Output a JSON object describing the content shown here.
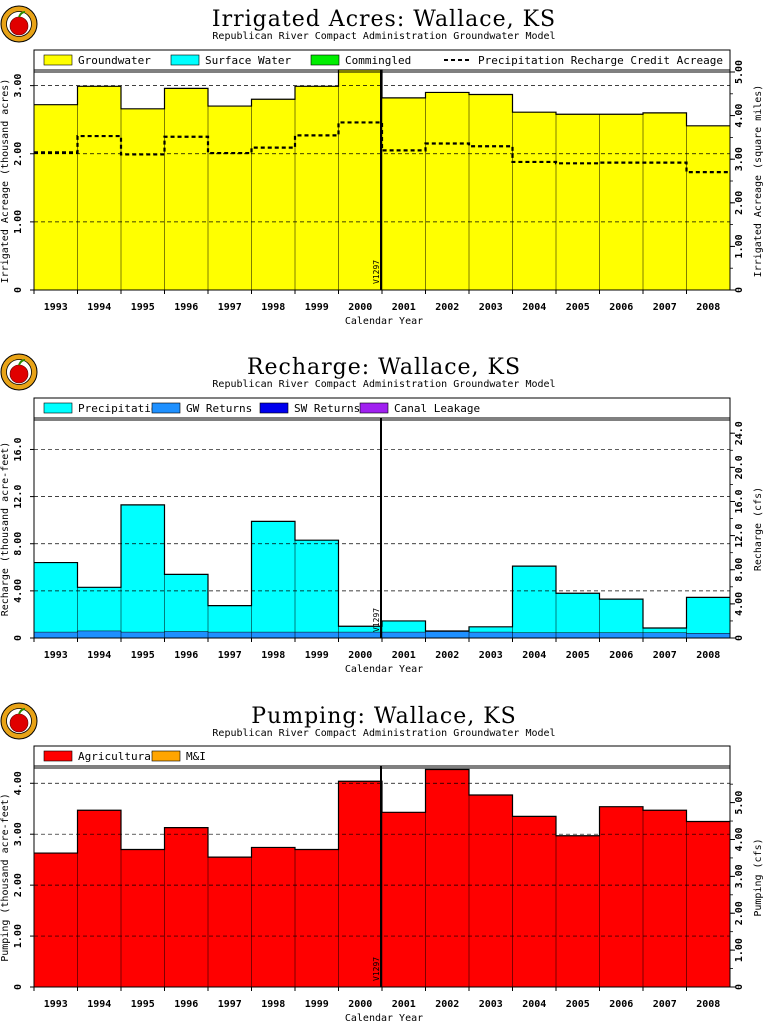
{
  "chart_data": [
    {
      "type": "area",
      "title": "Irrigated Acres: Wallace, KS",
      "subtitle": "Republican River Compact Administration Groundwater Model",
      "xlabel": "Calendar Year",
      "ylabel_left": "Irrigated Acreage (thousand acres)",
      "ylabel_right": "Irrigated Acreage (square miles)",
      "categories": [
        "1993",
        "1994",
        "1995",
        "1996",
        "1997",
        "1998",
        "1999",
        "2000",
        "2001",
        "2002",
        "2003",
        "2004",
        "2005",
        "2006",
        "2007",
        "2008"
      ],
      "ylim": [
        0,
        3.2
      ],
      "left_ticks": [
        "0",
        "1.00",
        "2.00",
        "3.00"
      ],
      "left_tick_values": [
        0,
        1,
        2,
        3
      ],
      "right_ticks": [
        "0",
        "1.00",
        "2.00",
        "3.00",
        "4.00",
        "5.00"
      ],
      "right_tick_values": [
        0,
        1,
        2,
        3,
        4,
        5
      ],
      "right_scale": 1.5625,
      "grid_values": [
        1,
        2,
        3
      ],
      "marker_label": "V1297",
      "marker_after_index": 7,
      "legend": [
        {
          "name": "Groundwater",
          "color": "#ffff00",
          "style": "box"
        },
        {
          "name": "Surface Water",
          "color": "#00ffff",
          "style": "box"
        },
        {
          "name": "Commingled",
          "color": "#00ee00",
          "style": "box"
        },
        {
          "name": "Precipitation Recharge Credit Acreage",
          "color": "#000000",
          "style": "dashed"
        }
      ],
      "series": [
        {
          "name": "Groundwater",
          "color": "#ffff00",
          "values": [
            2.72,
            2.99,
            2.66,
            2.96,
            2.7,
            2.8,
            2.99,
            3.23,
            2.82,
            2.9,
            2.87,
            2.61,
            2.58,
            2.58,
            2.6,
            2.41
          ]
        },
        {
          "name": "Surface Water",
          "color": "#00ffff",
          "values": [
            0,
            0,
            0,
            0,
            0,
            0,
            0,
            0,
            0,
            0,
            0,
            0,
            0,
            0,
            0,
            0
          ]
        },
        {
          "name": "Commingled",
          "color": "#00ee00",
          "values": [
            0,
            0,
            0,
            0,
            0,
            0,
            0,
            0,
            0,
            0,
            0,
            0,
            0,
            0,
            0,
            0
          ]
        }
      ],
      "line_series": {
        "name": "Precipitation Recharge Credit Acreage",
        "values": [
          2.02,
          2.26,
          1.99,
          2.25,
          2.01,
          2.09,
          2.27,
          2.46,
          2.05,
          2.15,
          2.11,
          1.88,
          1.86,
          1.87,
          1.87,
          1.73
        ]
      }
    },
    {
      "type": "area",
      "title": "Recharge: Wallace, KS",
      "subtitle": "Republican River Compact Administration Groundwater Model",
      "xlabel": "Calendar Year",
      "ylabel_left": "Recharge (thousand acre-feet)",
      "ylabel_right": "Recharge (cfs)",
      "categories": [
        "1993",
        "1994",
        "1995",
        "1996",
        "1997",
        "1998",
        "1999",
        "2000",
        "2001",
        "2002",
        "2003",
        "2004",
        "2005",
        "2006",
        "2007",
        "2008"
      ],
      "ylim": [
        0,
        18.5
      ],
      "left_ticks": [
        "0",
        "4.00",
        "8.00",
        "12.0",
        "16.0"
      ],
      "left_tick_values": [
        0,
        4,
        8,
        12,
        16
      ],
      "right_ticks": [
        "0",
        "4.00",
        "8.00",
        "12.0",
        "16.0",
        "20.0",
        "24.0"
      ],
      "right_tick_values": [
        0,
        4,
        8,
        12,
        16,
        20,
        24
      ],
      "right_scale": 1.381,
      "grid_values": [
        4,
        8,
        12,
        16
      ],
      "marker_label": "V1297",
      "marker_after_index": 7,
      "legend": [
        {
          "name": "Precipitation",
          "color": "#00ffff",
          "style": "box"
        },
        {
          "name": "GW Returns",
          "color": "#1e90ff",
          "style": "box"
        },
        {
          "name": "SW Returns",
          "color": "#0000ee",
          "style": "box"
        },
        {
          "name": "Canal Leakage",
          "color": "#a020f0",
          "style": "box"
        }
      ],
      "series": [
        {
          "name": "GW Returns",
          "color": "#1e90ff",
          "values": [
            0.5,
            0.6,
            0.5,
            0.55,
            0.5,
            0.5,
            0.5,
            0.5,
            0.5,
            0.55,
            0.5,
            0.45,
            0.45,
            0.45,
            0.45,
            0.4
          ]
        },
        {
          "name": "SW Returns",
          "color": "#0000ee",
          "values": [
            0,
            0,
            0,
            0,
            0,
            0,
            0,
            0,
            0,
            0,
            0,
            0,
            0,
            0,
            0,
            0
          ]
        },
        {
          "name": "Canal Leakage",
          "color": "#a020f0",
          "values": [
            0,
            0,
            0,
            0,
            0,
            0,
            0,
            0,
            0,
            0,
            0,
            0,
            0,
            0,
            0,
            0
          ]
        },
        {
          "name": "Precipitation",
          "color": "#00ffff",
          "values": [
            5.9,
            3.7,
            10.8,
            4.85,
            2.25,
            9.4,
            7.8,
            0.5,
            0.95,
            0.05,
            0.45,
            5.65,
            3.35,
            2.85,
            0.4,
            3.05
          ]
        }
      ]
    },
    {
      "type": "area",
      "title": "Pumping: Wallace, KS",
      "subtitle": "Republican River Compact Administration Groundwater Model",
      "xlabel": "Calendar Year",
      "ylabel_left": "Pumping (thousand acre-feet)",
      "ylabel_right": "Pumping (cfs)",
      "categories": [
        "1993",
        "1994",
        "1995",
        "1996",
        "1997",
        "1998",
        "1999",
        "2000",
        "2001",
        "2002",
        "2003",
        "2004",
        "2005",
        "2006",
        "2007",
        "2008"
      ],
      "ylim": [
        0,
        4.3
      ],
      "left_ticks": [
        "0",
        "1.00",
        "2.00",
        "3.00",
        "4.00"
      ],
      "left_tick_values": [
        0,
        1,
        2,
        3,
        4
      ],
      "right_ticks": [
        "0",
        "1.00",
        "2.00",
        "3.00",
        "4.00",
        "5.00"
      ],
      "right_tick_values": [
        0,
        1,
        2,
        3,
        4,
        5
      ],
      "right_scale": 1.381,
      "grid_values": [
        1,
        2,
        3,
        4
      ],
      "marker_label": "V1297",
      "marker_after_index": 7,
      "legend": [
        {
          "name": "Agricultural",
          "color": "#ff0000",
          "style": "box"
        },
        {
          "name": "M&I",
          "color": "#ffa500",
          "style": "box"
        }
      ],
      "series": [
        {
          "name": "Agricultural",
          "color": "#ff0000",
          "values": [
            2.63,
            3.47,
            2.7,
            3.13,
            2.55,
            2.74,
            2.7,
            4.04,
            3.43,
            4.27,
            3.77,
            3.35,
            2.97,
            3.54,
            3.47,
            3.25
          ]
        },
        {
          "name": "M&I",
          "color": "#ffa500",
          "values": [
            0,
            0,
            0,
            0,
            0,
            0,
            0,
            0,
            0,
            0,
            0,
            0,
            0,
            0,
            0,
            0
          ]
        }
      ]
    }
  ]
}
